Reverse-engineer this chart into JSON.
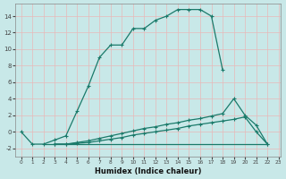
{
  "xlabel": "Humidex (Indice chaleur)",
  "background_color": "#c8e8e8",
  "grid_color": "#e8b8b8",
  "line_color": "#1a7a6a",
  "xmin": 0,
  "xmax": 23,
  "ymin": -3,
  "ymax": 15.5,
  "yticks": [
    -2,
    0,
    2,
    4,
    6,
    8,
    10,
    12,
    14
  ],
  "xticks": [
    0,
    1,
    2,
    3,
    4,
    5,
    6,
    7,
    8,
    9,
    10,
    11,
    12,
    13,
    14,
    15,
    16,
    17,
    18,
    19,
    20,
    21,
    22,
    23
  ],
  "line1_x": [
    0,
    1,
    2,
    3,
    4,
    5,
    6,
    7,
    8,
    9,
    10,
    11,
    12,
    13,
    14,
    15,
    16,
    17,
    18
  ],
  "line1_y": [
    0.0,
    -1.5,
    -1.5,
    -1.0,
    -0.5,
    2.5,
    5.5,
    9.0,
    10.5,
    10.5,
    12.5,
    12.5,
    13.5,
    14.0,
    14.8,
    14.8,
    14.8,
    14.0,
    7.5
  ],
  "line2_x": [
    3,
    4,
    5,
    6,
    7,
    8,
    9,
    10,
    11,
    12,
    13,
    14,
    15,
    16,
    17,
    18,
    19,
    20,
    21,
    22
  ],
  "line2_y": [
    -1.5,
    -1.5,
    -1.3,
    -1.1,
    -0.8,
    -0.5,
    -0.2,
    0.1,
    0.4,
    0.6,
    0.9,
    1.1,
    1.4,
    1.6,
    1.9,
    2.2,
    4.0,
    2.0,
    0.8,
    -1.5
  ],
  "line3_x": [
    3,
    4,
    5,
    6,
    7,
    8,
    9,
    10,
    11,
    12,
    13,
    14,
    15,
    16,
    17,
    18,
    19,
    20,
    21,
    22
  ],
  "line3_y": [
    -1.5,
    -1.5,
    -1.4,
    -1.3,
    -1.1,
    -0.9,
    -0.7,
    -0.4,
    -0.2,
    0.0,
    0.2,
    0.4,
    0.7,
    0.9,
    1.1,
    1.3,
    1.5,
    1.8,
    0.0,
    -1.5
  ],
  "line4_x": [
    2,
    3,
    4,
    5,
    6,
    7,
    8,
    9,
    10,
    11,
    12,
    13,
    14,
    15,
    16,
    17,
    18,
    19,
    20,
    21,
    22
  ],
  "line4_y": [
    -1.5,
    -1.5,
    -1.5,
    -1.5,
    -1.5,
    -1.5,
    -1.5,
    -1.5,
    -1.5,
    -1.5,
    -1.5,
    -1.5,
    -1.5,
    -1.5,
    -1.5,
    -1.5,
    -1.5,
    -1.5,
    -1.5,
    -1.5,
    -1.5
  ]
}
